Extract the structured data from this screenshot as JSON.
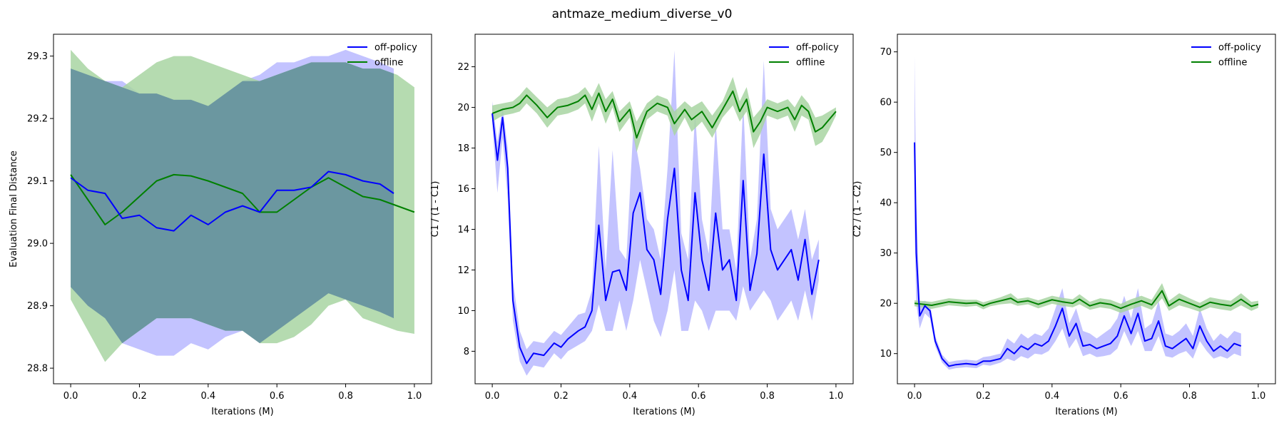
{
  "figure_title": "antmaze_medium_diverse_v0",
  "colors": {
    "off_policy": "#0000ff",
    "offline": "#008000",
    "off_policy_band": "#aaaaff",
    "offline_band": "#a8d5a2",
    "overlap_band": "#6b97a0"
  },
  "chart_data": [
    {
      "type": "line",
      "title": "",
      "xlabel": "Iterations (M)",
      "ylabel": "Evaluation Final Distance",
      "xlim": [
        -0.05,
        1.05
      ],
      "ylim": [
        28.775,
        29.335
      ],
      "xticks": [
        "0.0",
        "0.2",
        "0.4",
        "0.6",
        "0.8",
        "1.0"
      ],
      "xtick_values": [
        0.0,
        0.2,
        0.4,
        0.6,
        0.8,
        1.0
      ],
      "yticks": [
        "28.8",
        "28.9",
        "29.0",
        "29.1",
        "29.2",
        "29.3"
      ],
      "ytick_values": [
        28.8,
        28.9,
        29.0,
        29.1,
        29.2,
        29.3
      ],
      "legend": {
        "position": "top-right",
        "entries": [
          "off-policy",
          "offline"
        ]
      },
      "series": [
        {
          "name": "off-policy",
          "x": [
            0.0,
            0.05,
            0.1,
            0.15,
            0.2,
            0.25,
            0.3,
            0.35,
            0.4,
            0.45,
            0.5,
            0.55,
            0.6,
            0.65,
            0.7,
            0.75,
            0.8,
            0.85,
            0.9,
            0.94
          ],
          "values": [
            29.105,
            29.085,
            29.08,
            29.04,
            29.045,
            29.025,
            29.02,
            29.045,
            29.03,
            29.05,
            29.06,
            29.05,
            29.085,
            29.085,
            29.09,
            29.115,
            29.11,
            29.1,
            29.095,
            29.08
          ],
          "upper": [
            29.28,
            29.27,
            29.26,
            29.26,
            29.24,
            29.24,
            29.23,
            29.23,
            29.22,
            29.24,
            29.26,
            29.27,
            29.29,
            29.29,
            29.3,
            29.3,
            29.31,
            29.3,
            29.29,
            29.28
          ],
          "lower": [
            28.93,
            28.9,
            28.88,
            28.84,
            28.83,
            28.82,
            28.82,
            28.84,
            28.83,
            28.85,
            28.86,
            28.84,
            28.86,
            28.88,
            28.9,
            28.92,
            28.91,
            28.9,
            28.89,
            28.88
          ]
        },
        {
          "name": "offline",
          "x": [
            0.0,
            0.05,
            0.1,
            0.15,
            0.2,
            0.25,
            0.3,
            0.35,
            0.4,
            0.45,
            0.5,
            0.55,
            0.6,
            0.65,
            0.7,
            0.75,
            0.8,
            0.85,
            0.9,
            0.95,
            1.0
          ],
          "values": [
            29.11,
            29.07,
            29.03,
            29.05,
            29.075,
            29.1,
            29.11,
            29.108,
            29.1,
            29.09,
            29.08,
            29.05,
            29.05,
            29.07,
            29.09,
            29.105,
            29.09,
            29.075,
            29.07,
            29.06,
            29.05
          ],
          "upper": [
            29.31,
            29.28,
            29.26,
            29.25,
            29.27,
            29.29,
            29.3,
            29.3,
            29.29,
            29.28,
            29.27,
            29.26,
            29.27,
            29.28,
            29.29,
            29.29,
            29.29,
            29.28,
            29.28,
            29.27,
            29.25
          ],
          "lower": [
            28.91,
            28.86,
            28.81,
            28.84,
            28.86,
            28.88,
            28.88,
            28.88,
            28.87,
            28.86,
            28.86,
            28.84,
            28.84,
            28.85,
            28.87,
            28.9,
            28.91,
            28.88,
            28.87,
            28.86,
            28.855
          ]
        }
      ]
    },
    {
      "type": "line",
      "title": "",
      "xlabel": "Iterations (M)",
      "ylabel": "C1 / (1 - C1)",
      "xlim": [
        -0.05,
        1.05
      ],
      "ylim": [
        6.4,
        23.6
      ],
      "xticks": [
        "0.0",
        "0.2",
        "0.4",
        "0.6",
        "0.8",
        "1.0"
      ],
      "xtick_values": [
        0.0,
        0.2,
        0.4,
        0.6,
        0.8,
        1.0
      ],
      "yticks": [
        "8",
        "10",
        "12",
        "14",
        "16",
        "18",
        "20",
        "22"
      ],
      "ytick_values": [
        8,
        10,
        12,
        14,
        16,
        18,
        20,
        22
      ],
      "legend": {
        "position": "top-right",
        "entries": [
          "off-policy",
          "offline"
        ]
      },
      "series": [
        {
          "name": "off-policy",
          "x": [
            0.0,
            0.015,
            0.03,
            0.045,
            0.06,
            0.08,
            0.1,
            0.12,
            0.15,
            0.18,
            0.2,
            0.22,
            0.25,
            0.27,
            0.29,
            0.31,
            0.33,
            0.35,
            0.37,
            0.39,
            0.41,
            0.43,
            0.45,
            0.47,
            0.49,
            0.51,
            0.53,
            0.55,
            0.57,
            0.59,
            0.61,
            0.63,
            0.65,
            0.67,
            0.69,
            0.71,
            0.73,
            0.75,
            0.77,
            0.79,
            0.81,
            0.83,
            0.85,
            0.87,
            0.89,
            0.91,
            0.93,
            0.95
          ],
          "values": [
            19.7,
            17.4,
            19.5,
            17.0,
            10.5,
            8.2,
            7.4,
            7.9,
            7.8,
            8.4,
            8.2,
            8.6,
            9.0,
            9.2,
            10.0,
            14.2,
            10.5,
            11.9,
            12.0,
            11.0,
            14.8,
            15.8,
            13.0,
            12.5,
            10.8,
            14.5,
            17.0,
            12.0,
            10.5,
            15.8,
            12.5,
            11.0,
            14.8,
            12.0,
            12.5,
            10.5,
            16.4,
            11.0,
            12.8,
            17.7,
            13.0,
            12.0,
            12.5,
            13.0,
            11.5,
            13.5,
            10.8,
            12.5
          ],
          "upper": [
            20.3,
            18.3,
            20.0,
            18.0,
            11.5,
            9.0,
            8.1,
            8.5,
            8.4,
            9.0,
            8.8,
            9.2,
            9.8,
            9.9,
            11.0,
            18.1,
            12.0,
            17.9,
            13.0,
            12.5,
            18.9,
            17.0,
            14.5,
            14.0,
            12.5,
            17.0,
            22.8,
            13.8,
            12.5,
            19.8,
            14.5,
            12.8,
            19.3,
            14.0,
            14.0,
            12.0,
            20.3,
            12.5,
            14.5,
            22.3,
            15.0,
            14.0,
            14.5,
            15.0,
            13.5,
            15.0,
            12.5,
            13.5
          ],
          "lower": [
            19.2,
            15.8,
            18.5,
            15.5,
            9.5,
            7.5,
            6.8,
            7.3,
            7.2,
            7.9,
            7.6,
            8.0,
            8.3,
            8.5,
            9.0,
            10.3,
            9.0,
            9.0,
            10.5,
            9.0,
            10.5,
            12.5,
            11.0,
            9.5,
            8.7,
            10.0,
            12.0,
            9.0,
            9.0,
            10.5,
            10.0,
            9.0,
            10.0,
            10.0,
            10.0,
            9.5,
            11.2,
            10.0,
            10.5,
            11.0,
            10.5,
            9.5,
            10.0,
            10.5,
            9.5,
            11.0,
            9.5,
            11.5
          ]
        },
        {
          "name": "offline",
          "x": [
            0.0,
            0.03,
            0.06,
            0.08,
            0.1,
            0.13,
            0.16,
            0.19,
            0.22,
            0.25,
            0.27,
            0.29,
            0.31,
            0.33,
            0.35,
            0.37,
            0.4,
            0.42,
            0.45,
            0.48,
            0.51,
            0.53,
            0.56,
            0.58,
            0.61,
            0.64,
            0.67,
            0.7,
            0.72,
            0.74,
            0.76,
            0.78,
            0.8,
            0.83,
            0.86,
            0.88,
            0.9,
            0.92,
            0.94,
            0.96,
            0.98,
            1.0
          ],
          "values": [
            19.7,
            19.9,
            20.0,
            20.2,
            20.6,
            20.1,
            19.5,
            20.0,
            20.1,
            20.3,
            20.6,
            19.9,
            20.7,
            19.8,
            20.4,
            19.3,
            19.9,
            18.5,
            19.8,
            20.2,
            20.0,
            19.2,
            19.9,
            19.4,
            19.8,
            19.0,
            19.9,
            20.8,
            19.8,
            20.4,
            18.8,
            19.3,
            20.0,
            19.8,
            20.0,
            19.4,
            20.1,
            19.8,
            18.8,
            19.0,
            19.4,
            19.8
          ],
          "upper": [
            20.1,
            20.2,
            20.3,
            20.6,
            21.0,
            20.5,
            20.0,
            20.4,
            20.5,
            20.7,
            21.0,
            20.5,
            21.2,
            20.4,
            20.8,
            19.8,
            20.3,
            19.3,
            20.2,
            20.6,
            20.4,
            19.8,
            20.3,
            20.0,
            20.3,
            19.6,
            20.3,
            21.5,
            20.3,
            21.0,
            19.5,
            19.9,
            20.4,
            20.2,
            20.4,
            20.0,
            20.6,
            20.2,
            19.5,
            19.6,
            19.8,
            20.0
          ],
          "lower": [
            19.3,
            19.6,
            19.7,
            19.8,
            20.2,
            19.7,
            19.0,
            19.6,
            19.7,
            19.9,
            20.2,
            19.3,
            20.2,
            19.2,
            20.0,
            18.8,
            19.5,
            17.8,
            19.4,
            19.8,
            19.6,
            18.6,
            19.5,
            18.8,
            19.3,
            18.5,
            19.5,
            20.1,
            19.3,
            19.8,
            18.0,
            18.7,
            19.6,
            19.4,
            19.6,
            18.8,
            19.6,
            19.4,
            18.1,
            18.3,
            18.9,
            19.6
          ]
        }
      ]
    },
    {
      "type": "line",
      "title": "",
      "xlabel": "Iterations (M)",
      "ylabel": "C2 / (1 - C2)",
      "xlim": [
        -0.05,
        1.05
      ],
      "ylim": [
        4.0,
        73.5
      ],
      "xticks": [
        "0.0",
        "0.2",
        "0.4",
        "0.6",
        "0.8",
        "1.0"
      ],
      "xtick_values": [
        0.0,
        0.2,
        0.4,
        0.6,
        0.8,
        1.0
      ],
      "yticks": [
        "10",
        "20",
        "30",
        "40",
        "50",
        "60",
        "70"
      ],
      "ytick_values": [
        10,
        20,
        30,
        40,
        50,
        60,
        70
      ],
      "legend": {
        "position": "top-right",
        "entries": [
          "off-policy",
          "offline"
        ]
      },
      "series": [
        {
          "name": "off-policy",
          "x": [
            0.0,
            0.005,
            0.015,
            0.03,
            0.045,
            0.06,
            0.08,
            0.1,
            0.12,
            0.15,
            0.18,
            0.2,
            0.22,
            0.25,
            0.27,
            0.29,
            0.31,
            0.33,
            0.35,
            0.37,
            0.39,
            0.41,
            0.43,
            0.45,
            0.47,
            0.49,
            0.51,
            0.53,
            0.55,
            0.57,
            0.59,
            0.61,
            0.63,
            0.65,
            0.67,
            0.69,
            0.71,
            0.73,
            0.75,
            0.77,
            0.79,
            0.81,
            0.83,
            0.85,
            0.87,
            0.89,
            0.91,
            0.93,
            0.95
          ],
          "values": [
            52.0,
            30.0,
            17.5,
            19.5,
            18.5,
            12.5,
            9.0,
            7.5,
            7.8,
            8.0,
            7.8,
            8.5,
            8.5,
            9.0,
            11.0,
            10.0,
            11.5,
            10.8,
            12.0,
            11.5,
            12.5,
            15.5,
            19.0,
            13.5,
            16.0,
            11.5,
            11.8,
            11.0,
            11.5,
            12.0,
            13.5,
            17.5,
            14.0,
            18.0,
            12.5,
            13.0,
            16.5,
            11.5,
            11.0,
            12.0,
            13.0,
            11.0,
            15.5,
            12.5,
            10.5,
            11.5,
            10.5,
            12.0,
            11.5
          ],
          "upper": [
            69.0,
            40.0,
            20.0,
            20.5,
            20.0,
            13.5,
            9.8,
            8.3,
            8.6,
            8.8,
            8.6,
            9.3,
            9.5,
            10.0,
            13.0,
            12.0,
            14.0,
            13.0,
            14.0,
            13.5,
            15.0,
            19.0,
            23.0,
            16.0,
            19.0,
            14.5,
            14.0,
            13.0,
            14.0,
            15.0,
            17.0,
            21.5,
            17.0,
            23.0,
            15.0,
            16.0,
            20.5,
            14.0,
            13.5,
            14.5,
            16.0,
            13.5,
            19.0,
            15.0,
            12.5,
            14.0,
            13.0,
            14.5,
            14.0
          ],
          "lower": [
            35.0,
            20.0,
            15.0,
            18.0,
            17.0,
            11.5,
            8.2,
            6.8,
            7.1,
            7.3,
            7.1,
            7.8,
            7.6,
            8.2,
            9.0,
            8.5,
            9.5,
            9.0,
            10.0,
            9.8,
            10.5,
            12.5,
            15.0,
            11.0,
            13.0,
            9.5,
            10.0,
            9.3,
            9.5,
            9.8,
            11.0,
            14.5,
            11.5,
            14.5,
            10.5,
            10.5,
            13.5,
            9.5,
            9.2,
            10.0,
            10.5,
            9.0,
            12.5,
            10.5,
            9.0,
            9.5,
            9.0,
            10.0,
            9.5
          ]
        },
        {
          "name": "offline",
          "x": [
            0.0,
            0.05,
            0.1,
            0.15,
            0.18,
            0.2,
            0.22,
            0.25,
            0.28,
            0.3,
            0.33,
            0.36,
            0.4,
            0.43,
            0.46,
            0.48,
            0.51,
            0.54,
            0.57,
            0.6,
            0.63,
            0.66,
            0.69,
            0.72,
            0.74,
            0.77,
            0.8,
            0.83,
            0.86,
            0.89,
            0.92,
            0.95,
            0.98,
            1.0
          ],
          "values": [
            20.0,
            19.6,
            20.3,
            20.0,
            20.1,
            19.5,
            20.0,
            20.5,
            21.0,
            20.2,
            20.5,
            19.8,
            20.7,
            20.3,
            20.0,
            20.8,
            19.5,
            20.1,
            19.8,
            19.0,
            19.8,
            20.5,
            19.7,
            22.5,
            19.5,
            20.8,
            20.0,
            19.2,
            20.2,
            19.8,
            19.5,
            20.8,
            19.4,
            19.8
          ],
          "upper": [
            20.6,
            20.3,
            21.0,
            20.7,
            20.7,
            20.2,
            20.6,
            21.2,
            22.0,
            20.9,
            21.2,
            20.6,
            21.5,
            21.1,
            20.8,
            21.8,
            20.3,
            21.0,
            20.7,
            19.9,
            20.8,
            21.5,
            20.7,
            24.0,
            20.5,
            22.0,
            21.0,
            20.1,
            21.2,
            20.8,
            20.5,
            22.0,
            20.3,
            20.5
          ],
          "lower": [
            19.4,
            18.9,
            19.6,
            19.3,
            19.5,
            18.8,
            19.4,
            19.8,
            20.0,
            19.5,
            19.8,
            19.0,
            19.9,
            19.5,
            19.2,
            19.8,
            18.7,
            19.2,
            18.9,
            18.1,
            18.8,
            19.5,
            18.7,
            21.0,
            18.5,
            19.6,
            19.0,
            18.3,
            19.2,
            18.8,
            18.5,
            19.6,
            18.5,
            19.1
          ]
        }
      ]
    }
  ]
}
